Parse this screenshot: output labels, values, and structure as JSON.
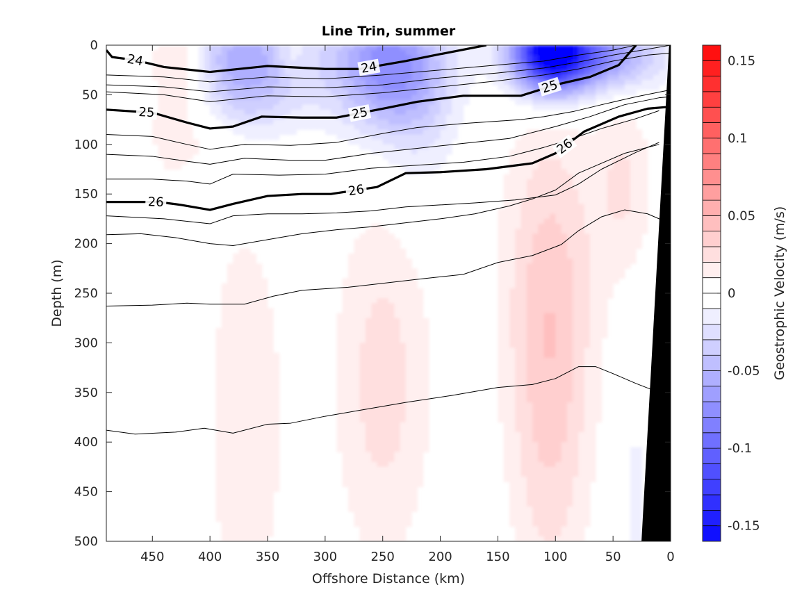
{
  "chart_data": {
    "type": "heatmap",
    "title": "Line Trin, summer",
    "xlabel": "Offshore Distance (km)",
    "ylabel": "Depth (m)",
    "xlim": [
      490,
      0
    ],
    "ylim": [
      0,
      500
    ],
    "x_reversed": true,
    "y_reversed": true,
    "xticks": [
      450,
      400,
      350,
      300,
      250,
      200,
      150,
      100,
      50,
      0
    ],
    "yticks": [
      0,
      50,
      100,
      150,
      200,
      250,
      300,
      350,
      400,
      450,
      500
    ],
    "colorbar": {
      "label": "Geostrophic Velocity (m/s)",
      "range": [
        -0.16,
        0.16
      ],
      "step": 0.01,
      "ticks": [
        0.15,
        0.1,
        0.05,
        0,
        -0.05,
        -0.1,
        -0.15
      ],
      "tick_labels": [
        "0.15",
        "0.1",
        "0.05",
        "0",
        "-0.05",
        "-0.1",
        "-0.15"
      ],
      "positive_color": "#ff0000",
      "negative_color": "#0000ff"
    },
    "velocity_features": [
      {
        "x": 425,
        "depth": 10,
        "value": 0.03,
        "sx": 18,
        "sy": 35
      },
      {
        "x": 370,
        "depth": 20,
        "value": -0.06,
        "sx": 35,
        "sy": 45
      },
      {
        "x": 330,
        "depth": 10,
        "value": 0.015,
        "sx": 10,
        "sy": 15
      },
      {
        "x": 250,
        "depth": 20,
        "value": -0.07,
        "sx": 35,
        "sy": 45
      },
      {
        "x": 220,
        "depth": 60,
        "value": -0.02,
        "sx": 25,
        "sy": 70
      },
      {
        "x": 105,
        "depth": 5,
        "value": -0.14,
        "sx": 22,
        "sy": 30
      },
      {
        "x": 70,
        "depth": 10,
        "value": -0.08,
        "sx": 40,
        "sy": 25
      },
      {
        "x": 420,
        "depth": 90,
        "value": 0.02,
        "sx": 25,
        "sy": 40
      },
      {
        "x": 415,
        "depth": 350,
        "value": -0.012,
        "sx": 10,
        "sy": 170
      },
      {
        "x": 370,
        "depth": 380,
        "value": 0.02,
        "sx": 25,
        "sy": 150
      },
      {
        "x": 250,
        "depth": 340,
        "value": 0.025,
        "sx": 30,
        "sy": 130
      },
      {
        "x": 105,
        "depth": 350,
        "value": 0.03,
        "sx": 25,
        "sy": 160
      },
      {
        "x": 105,
        "depth": 220,
        "value": 0.015,
        "sx": 35,
        "sy": 120
      },
      {
        "x": 40,
        "depth": 140,
        "value": 0.02,
        "sx": 18,
        "sy": 60
      },
      {
        "x": 30,
        "depth": 450,
        "value": -0.015,
        "sx": 8,
        "sy": 60
      }
    ],
    "isopycnals": [
      {
        "value": 24,
        "bold": true,
        "labels": [
          {
            "x": 465,
            "label": "24"
          },
          {
            "x": 262,
            "label": "24"
          }
        ],
        "points": [
          [
            490,
            5
          ],
          [
            485,
            12
          ],
          [
            465,
            15
          ],
          [
            440,
            22
          ],
          [
            400,
            27
          ],
          [
            350,
            21
          ],
          [
            300,
            24
          ],
          [
            270,
            24
          ],
          [
            230,
            16
          ],
          [
            200,
            9
          ],
          [
            160,
            0
          ]
        ]
      },
      {
        "value": 24.5,
        "bold": false,
        "labels": [],
        "points": [
          [
            490,
            30
          ],
          [
            440,
            32
          ],
          [
            400,
            37
          ],
          [
            350,
            32
          ],
          [
            300,
            34
          ],
          [
            250,
            30
          ],
          [
            200,
            25
          ],
          [
            150,
            20
          ],
          [
            110,
            16
          ],
          [
            80,
            10
          ],
          [
            50,
            5
          ],
          [
            30,
            0
          ]
        ]
      },
      {
        "value": 24.6,
        "bold": false,
        "labels": [],
        "points": [
          [
            490,
            40
          ],
          [
            440,
            42
          ],
          [
            400,
            47
          ],
          [
            350,
            42
          ],
          [
            300,
            43
          ],
          [
            250,
            40
          ],
          [
            200,
            33
          ],
          [
            150,
            28
          ],
          [
            110,
            23
          ],
          [
            80,
            17
          ],
          [
            50,
            10
          ],
          [
            20,
            4
          ],
          [
            0,
            0
          ]
        ]
      },
      {
        "value": 24.8,
        "bold": false,
        "labels": [],
        "points": [
          [
            490,
            47
          ],
          [
            440,
            50
          ],
          [
            400,
            57
          ],
          [
            350,
            51
          ],
          [
            300,
            52
          ],
          [
            250,
            48
          ],
          [
            200,
            42
          ],
          [
            150,
            36
          ],
          [
            110,
            30
          ],
          [
            80,
            24
          ],
          [
            50,
            16
          ],
          [
            20,
            10
          ],
          [
            0,
            8
          ]
        ]
      },
      {
        "value": 25,
        "bold": true,
        "labels": [
          {
            "x": 455,
            "label": "25"
          },
          {
            "x": 270,
            "label": "25"
          },
          {
            "x": 105,
            "label": "25"
          }
        ],
        "points": [
          [
            490,
            65
          ],
          [
            450,
            68
          ],
          [
            420,
            78
          ],
          [
            400,
            84
          ],
          [
            380,
            82
          ],
          [
            355,
            72
          ],
          [
            320,
            73
          ],
          [
            290,
            73
          ],
          [
            250,
            64
          ],
          [
            220,
            57
          ],
          [
            180,
            51
          ],
          [
            130,
            51
          ],
          [
            100,
            40
          ],
          [
            70,
            32
          ],
          [
            45,
            20
          ],
          [
            30,
            0
          ]
        ]
      },
      {
        "value": 25.2,
        "bold": false,
        "labels": [],
        "points": [
          [
            490,
            90
          ],
          [
            450,
            92
          ],
          [
            420,
            100
          ],
          [
            400,
            105
          ],
          [
            370,
            100
          ],
          [
            330,
            101
          ],
          [
            290,
            98
          ],
          [
            250,
            89
          ],
          [
            220,
            83
          ],
          [
            180,
            79
          ],
          [
            130,
            75
          ],
          [
            110,
            72
          ],
          [
            85,
            67
          ],
          [
            60,
            60
          ],
          [
            30,
            52
          ],
          [
            0,
            45
          ]
        ]
      },
      {
        "value": 25.4,
        "bold": false,
        "labels": [],
        "points": [
          [
            490,
            110
          ],
          [
            450,
            112
          ],
          [
            420,
            117
          ],
          [
            400,
            120
          ],
          [
            370,
            114
          ],
          [
            330,
            116
          ],
          [
            300,
            116
          ],
          [
            260,
            109
          ],
          [
            220,
            104
          ],
          [
            180,
            99
          ],
          [
            140,
            94
          ],
          [
            100,
            82
          ],
          [
            70,
            72
          ],
          [
            40,
            60
          ],
          [
            10,
            53
          ],
          [
            0,
            52
          ]
        ]
      },
      {
        "value": 25.5,
        "bold": false,
        "labels": [],
        "points": [
          [
            490,
            135
          ],
          [
            450,
            135
          ],
          [
            420,
            137
          ],
          [
            400,
            140
          ],
          [
            380,
            130
          ],
          [
            340,
            131
          ],
          [
            300,
            130
          ],
          [
            260,
            124
          ],
          [
            220,
            121
          ],
          [
            180,
            118
          ],
          [
            140,
            112
          ],
          [
            110,
            103
          ],
          [
            90,
            96
          ],
          [
            60,
            84
          ],
          [
            30,
            74
          ],
          [
            10,
            66
          ]
        ]
      },
      {
        "value": 26,
        "bold": true,
        "labels": [
          {
            "x": 447,
            "label": "26"
          },
          {
            "x": 273,
            "label": "26"
          },
          {
            "x": 92,
            "label": "26"
          }
        ],
        "points": [
          [
            490,
            158
          ],
          [
            445,
            158
          ],
          [
            425,
            161
          ],
          [
            400,
            166
          ],
          [
            380,
            160
          ],
          [
            350,
            152
          ],
          [
            320,
            150
          ],
          [
            295,
            150
          ],
          [
            255,
            143
          ],
          [
            230,
            129
          ],
          [
            200,
            128
          ],
          [
            160,
            125
          ],
          [
            120,
            119
          ],
          [
            100,
            109
          ],
          [
            75,
            87
          ],
          [
            45,
            72
          ],
          [
            20,
            64
          ],
          [
            0,
            62
          ]
        ]
      },
      {
        "value": 26.2,
        "bold": false,
        "labels": [],
        "points": [
          [
            490,
            172
          ],
          [
            440,
            175
          ],
          [
            400,
            180
          ],
          [
            380,
            172
          ],
          [
            350,
            170
          ],
          [
            320,
            170
          ],
          [
            290,
            169
          ],
          [
            260,
            167
          ],
          [
            230,
            163
          ],
          [
            200,
            161
          ],
          [
            170,
            159
          ],
          [
            135,
            156
          ],
          [
            100,
            151
          ],
          [
            80,
            140
          ],
          [
            60,
            125
          ],
          [
            30,
            108
          ],
          [
            10,
            98
          ]
        ]
      },
      {
        "value": 26.4,
        "bold": false,
        "labels": [],
        "points": [
          [
            490,
            191
          ],
          [
            460,
            190
          ],
          [
            430,
            194
          ],
          [
            400,
            200
          ],
          [
            380,
            202
          ],
          [
            350,
            196
          ],
          [
            320,
            190
          ],
          [
            290,
            186
          ],
          [
            260,
            183
          ],
          [
            230,
            179
          ],
          [
            200,
            175
          ],
          [
            170,
            170
          ],
          [
            140,
            162
          ],
          [
            120,
            155
          ],
          [
            100,
            146
          ],
          [
            80,
            129
          ],
          [
            60,
            119
          ],
          [
            40,
            109
          ],
          [
            20,
            103
          ],
          [
            10,
            100
          ]
        ]
      },
      {
        "value": 26.6,
        "bold": false,
        "labels": [],
        "points": [
          [
            490,
            263
          ],
          [
            450,
            262
          ],
          [
            420,
            260
          ],
          [
            400,
            261
          ],
          [
            370,
            261
          ],
          [
            345,
            253
          ],
          [
            320,
            247
          ],
          [
            280,
            244
          ],
          [
            250,
            240
          ],
          [
            220,
            236
          ],
          [
            180,
            231
          ],
          [
            150,
            219
          ],
          [
            120,
            212
          ],
          [
            95,
            201
          ],
          [
            80,
            187
          ],
          [
            60,
            173
          ],
          [
            40,
            166
          ],
          [
            20,
            170
          ],
          [
            0,
            180
          ]
        ]
      },
      {
        "value": 26.8,
        "bold": false,
        "labels": [],
        "points": [
          [
            490,
            388
          ],
          [
            465,
            392
          ],
          [
            430,
            390
          ],
          [
            405,
            386
          ],
          [
            380,
            391
          ],
          [
            350,
            382
          ],
          [
            330,
            381
          ],
          [
            300,
            374
          ],
          [
            270,
            368
          ],
          [
            230,
            360
          ],
          [
            190,
            353
          ],
          [
            150,
            345
          ],
          [
            120,
            342
          ],
          [
            100,
            336
          ],
          [
            80,
            324
          ],
          [
            65,
            324
          ],
          [
            50,
            331
          ],
          [
            30,
            341
          ],
          [
            10,
            350
          ]
        ]
      }
    ],
    "topography": {
      "color": "#000000",
      "outline": [
        [
          25,
          500
        ],
        [
          1,
          0
        ],
        [
          0,
          0
        ],
        [
          0,
          500
        ]
      ]
    }
  }
}
